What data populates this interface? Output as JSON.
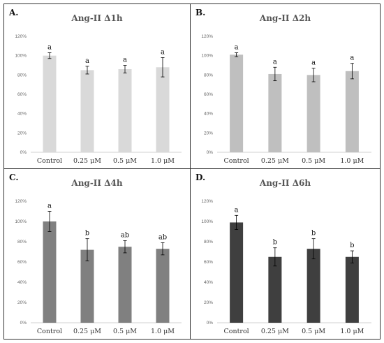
{
  "chart_data": [
    {
      "type": "bar",
      "panel_label": "A.",
      "title": "Ang-II Δ1h",
      "categories": [
        "Control",
        "0.25 μM",
        "0.5 μM",
        "1.0 μM"
      ],
      "values": [
        100,
        85,
        86,
        88
      ],
      "errors": [
        3,
        4,
        4,
        10
      ],
      "significance": [
        "a",
        "a",
        "a",
        "a"
      ],
      "ylim": [
        0,
        120
      ],
      "yticks": [
        "0%",
        "20%",
        "40%",
        "60%",
        "80%",
        "100%",
        "120%"
      ],
      "color": "#d9d9d9"
    },
    {
      "type": "bar",
      "panel_label": "B.",
      "title": "Ang-II Δ2h",
      "categories": [
        "Control",
        "0.25 μM",
        "0.5 μM",
        "1.0 μM"
      ],
      "values": [
        101,
        81,
        80,
        84
      ],
      "errors": [
        2,
        7,
        7,
        8
      ],
      "significance": [
        "a",
        "a",
        "a",
        "a"
      ],
      "ylim": [
        0,
        120
      ],
      "yticks": [
        "0%",
        "20%",
        "40%",
        "60%",
        "80%",
        "100%",
        "120%"
      ],
      "color": "#bfbfbf"
    },
    {
      "type": "bar",
      "panel_label": "C.",
      "title": "Ang-II Δ4h",
      "categories": [
        "Control",
        "0.25 μM",
        "0.5 μM",
        "1.0 μM"
      ],
      "values": [
        100,
        72,
        75,
        73
      ],
      "errors": [
        10,
        11,
        6,
        6
      ],
      "significance": [
        "a",
        "b",
        "ab",
        "ab"
      ],
      "ylim": [
        0,
        120
      ],
      "yticks": [
        "0%",
        "20%",
        "40%",
        "60%",
        "80%",
        "100%",
        "120%"
      ],
      "color": "#808080"
    },
    {
      "type": "bar",
      "panel_label": "D.",
      "title": "Ang-II Δ6h",
      "categories": [
        "Control",
        "0.25 μM",
        "0.5 μM",
        "1.0 μM"
      ],
      "values": [
        99,
        65,
        73,
        65
      ],
      "errors": [
        7,
        9,
        10,
        6
      ],
      "significance": [
        "a",
        "b",
        "b",
        "b"
      ],
      "ylim": [
        0,
        120
      ],
      "yticks": [
        "0%",
        "20%",
        "40%",
        "60%",
        "80%",
        "100%",
        "120%"
      ],
      "color": "#3f3f3f"
    }
  ]
}
